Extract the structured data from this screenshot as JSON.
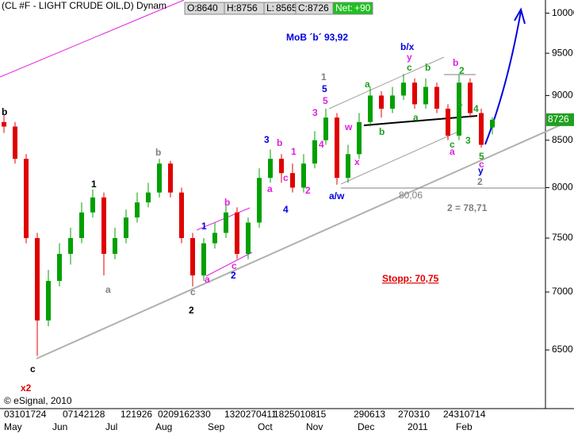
{
  "chart_data": {
    "type": "candlestick",
    "header": {
      "title": "(CL #F - LIGHT CRUDE OIL,D) Dynam",
      "fields": [
        {
          "label": "O:",
          "value": 8640
        },
        {
          "label": "H:",
          "value": 8756
        },
        {
          "label": "L:",
          "value": 8565
        },
        {
          "label": "C:",
          "value": 8726
        },
        {
          "label": "Net:",
          "value": {
            "value": 90,
            "label": "+90"
          }
        }
      ]
    },
    "log_scale": true,
    "ylim": [
      6030,
      10170
    ],
    "yticks": [
      6500,
      7000,
      7500,
      8000,
      8500,
      9000,
      9500,
      10000
    ],
    "last_price": 8726,
    "up_color": "#00a000",
    "down_color": "#e00000",
    "open": [
      8700,
      8650,
      8300,
      7500,
      6750,
      7100,
      7350,
      7500,
      7750,
      7900,
      7350,
      7500,
      7700,
      7850,
      7950,
      8250,
      7950,
      7500,
      7150,
      7450,
      7550,
      7750,
      7350,
      7650,
      8100,
      8300,
      8150,
      8000,
      8250,
      8500,
      8750,
      8100,
      8350,
      8700,
      9000,
      8850,
      9000,
      9150,
      8900,
      9100,
      8850,
      8550,
      9150,
      8800,
      8640
    ],
    "high": [
      8780,
      8700,
      8350,
      7550,
      7200,
      7450,
      7600,
      7850,
      7980,
      7950,
      7600,
      7780,
      7950,
      8050,
      8300,
      8280,
      8000,
      7550,
      7500,
      7650,
      7850,
      7800,
      7700,
      8200,
      8400,
      8350,
      8250,
      8350,
      8600,
      8850,
      8800,
      8450,
      8800,
      9100,
      9050,
      9100,
      9250,
      9200,
      9200,
      9150,
      8900,
      9250,
      9200,
      8850,
      8756
    ],
    "low": [
      8580,
      8250,
      7450,
      6450,
      6700,
      7050,
      7250,
      7450,
      7700,
      7150,
      7300,
      7450,
      7650,
      7800,
      7900,
      7900,
      7450,
      7050,
      7100,
      7400,
      7500,
      7300,
      7300,
      7600,
      8050,
      8050,
      7950,
      7950,
      8200,
      8450,
      8030,
      8050,
      8300,
      8650,
      8750,
      8800,
      8950,
      8850,
      8850,
      8800,
      8500,
      8500,
      8750,
      8420,
      8565
    ],
    "close": [
      8650,
      8300,
      7500,
      6750,
      7100,
      7350,
      7500,
      7750,
      7900,
      7350,
      7500,
      7700,
      7850,
      7950,
      8250,
      7950,
      7500,
      7150,
      7450,
      7550,
      7750,
      7350,
      7650,
      8100,
      8300,
      8150,
      8000,
      8250,
      8500,
      8750,
      8100,
      8350,
      8700,
      9000,
      8850,
      9000,
      9150,
      8900,
      9100,
      8850,
      8550,
      9150,
      8800,
      8450,
      8726
    ],
    "day_labels": [
      "03101724",
      "07142128",
      "121926",
      "0209162330",
      "1320270411",
      "18250108",
      "15",
      "290613",
      "270310",
      "24310714"
    ],
    "months": [
      "May",
      "Jun",
      "Jul",
      "Aug",
      "Sep",
      "Oct",
      "Nov",
      "Dec",
      "2011",
      "Feb"
    ],
    "annotations": [
      {
        "text": "b",
        "color": "#000000"
      },
      {
        "text": "c",
        "color": "#000000"
      },
      {
        "text": "x2",
        "color": "#e00000"
      },
      {
        "text": "1",
        "color": "#000000"
      },
      {
        "text": "a",
        "color": "#808080"
      },
      {
        "text": "b",
        "color": "#808080"
      },
      {
        "text": "2",
        "color": "#000000"
      },
      {
        "text": "c",
        "color": "#808080"
      },
      {
        "text": "1",
        "color": "#0000e0"
      },
      {
        "text": "b",
        "color": "#e020e0"
      },
      {
        "text": "a",
        "color": "#e020e0"
      },
      {
        "text": "c",
        "color": "#e020e0"
      },
      {
        "text": "2",
        "color": "#0000e0"
      },
      {
        "text": "3",
        "color": "#0000e0"
      },
      {
        "text": "b",
        "color": "#e020e0"
      },
      {
        "text": "1",
        "color": "#e020e0"
      },
      {
        "text": "a",
        "color": "#e020e0"
      },
      {
        "text": "c",
        "color": "#e020e0"
      },
      {
        "text": "4",
        "color": "#0000e0"
      },
      {
        "text": "2",
        "color": "#e020e0"
      },
      {
        "text": "3",
        "color": "#e020e0"
      },
      {
        "text": "4",
        "color": "#e020e0"
      },
      {
        "text": "5",
        "color": "#e020e0"
      },
      {
        "text": "5",
        "color": "#0000e0"
      },
      {
        "text": "1",
        "color": "#808080"
      },
      {
        "text": "w",
        "color": "#e020e0"
      },
      {
        "text": "x",
        "color": "#e020e0"
      },
      {
        "text": "a/w",
        "color": "#0000e0"
      },
      {
        "text": "a",
        "color": "#20a020"
      },
      {
        "text": "b",
        "color": "#20a020"
      },
      {
        "text": "c",
        "color": "#20a020"
      },
      {
        "text": "y",
        "color": "#e020e0"
      },
      {
        "text": "b/x",
        "color": "#0000e0"
      },
      {
        "text": "b",
        "color": "#20a020"
      },
      {
        "text": "a",
        "color": "#20a020"
      },
      {
        "text": "b",
        "color": "#e020e0"
      },
      {
        "text": "2",
        "color": "#20a020"
      },
      {
        "text": "1",
        "color": "#20a020"
      },
      {
        "text": "4",
        "color": "#20a020"
      },
      {
        "text": "3",
        "color": "#20a020"
      },
      {
        "text": "c",
        "color": "#20a020"
      },
      {
        "text": "a",
        "color": "#e020e0"
      },
      {
        "text": "5",
        "color": "#20a020"
      },
      {
        "text": "c",
        "color": "#e020e0"
      },
      {
        "text": "y",
        "color": "#0000e0"
      },
      {
        "text": "2",
        "color": "#808080"
      },
      {
        "text": "MoB ´b´ 93,92",
        "color": "#0000e0"
      },
      {
        "text": "80,06",
        "color": "#808080"
      },
      {
        "text": "2 = 78,71",
        "color": "#808080"
      },
      {
        "text": "Stopp: 70,75",
        "color": "#e00000"
      },
      {
        "text": "© eSignal, 2010",
        "color": "#000000"
      }
    ]
  }
}
